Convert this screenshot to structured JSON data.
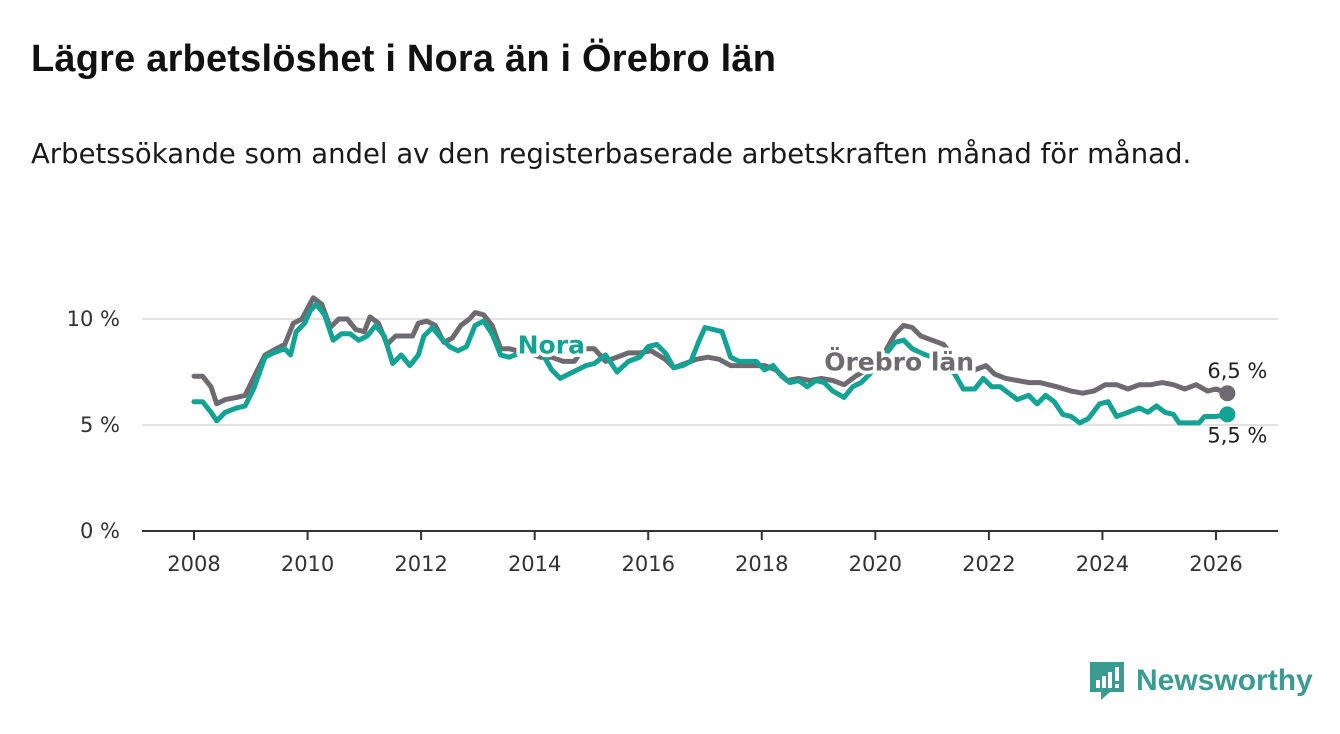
{
  "header": {
    "title": "Lägre arbetslöshet i Nora än i Örebro län",
    "subtitle": "Arbetssökande som andel av den registerbaserade arbetskraften månad för månad."
  },
  "brand": {
    "name": "Newsworthy",
    "icon": "bar-chart-exclamation-icon",
    "color": "#3a9b92"
  },
  "chart_data": {
    "type": "line",
    "title": "Lägre arbetslöshet i Nora än i Örebro län",
    "xlabel": "",
    "ylabel": "",
    "xlim": [
      2007.9,
      2027.1
    ],
    "ylim": [
      0,
      12
    ],
    "grid": true,
    "y_ticks": [
      {
        "value": 0,
        "label": "0 %"
      },
      {
        "value": 5,
        "label": "5 %"
      },
      {
        "value": 10,
        "label": "10 %"
      }
    ],
    "x_ticks": [
      {
        "value": 2008,
        "label": "2008"
      },
      {
        "value": 2010,
        "label": "2010"
      },
      {
        "value": 2012,
        "label": "2012"
      },
      {
        "value": 2014,
        "label": "2014"
      },
      {
        "value": 2016,
        "label": "2016"
      },
      {
        "value": 2018,
        "label": "2018"
      },
      {
        "value": 2020,
        "label": "2020"
      },
      {
        "value": 2022,
        "label": "2022"
      },
      {
        "value": 2024,
        "label": "2024"
      },
      {
        "value": 2026,
        "label": "2026"
      }
    ],
    "series": [
      {
        "name": "Örebro län",
        "color": "#6e6b70",
        "label_at": [
          2019.1,
          8.0
        ],
        "end_label": "6,5 %",
        "end_label_position": "above",
        "points": [
          [
            2008.0,
            7.3
          ],
          [
            2008.15,
            7.3
          ],
          [
            2008.3,
            6.8
          ],
          [
            2008.4,
            6.0
          ],
          [
            2008.55,
            6.2
          ],
          [
            2008.75,
            6.3
          ],
          [
            2008.9,
            6.4
          ],
          [
            2009.1,
            7.5
          ],
          [
            2009.25,
            8.3
          ],
          [
            2009.45,
            8.6
          ],
          [
            2009.6,
            8.8
          ],
          [
            2009.75,
            9.8
          ],
          [
            2009.9,
            10.0
          ],
          [
            2010.0,
            10.5
          ],
          [
            2010.1,
            11.0
          ],
          [
            2010.25,
            10.7
          ],
          [
            2010.4,
            9.6
          ],
          [
            2010.55,
            10.0
          ],
          [
            2010.7,
            10.0
          ],
          [
            2010.85,
            9.5
          ],
          [
            2011.0,
            9.4
          ],
          [
            2011.1,
            10.1
          ],
          [
            2011.25,
            9.8
          ],
          [
            2011.4,
            8.8
          ],
          [
            2011.55,
            9.2
          ],
          [
            2011.7,
            9.2
          ],
          [
            2011.85,
            9.2
          ],
          [
            2011.95,
            9.8
          ],
          [
            2012.1,
            9.9
          ],
          [
            2012.25,
            9.7
          ],
          [
            2012.4,
            8.9
          ],
          [
            2012.55,
            9.1
          ],
          [
            2012.7,
            9.7
          ],
          [
            2012.85,
            10.0
          ],
          [
            2012.95,
            10.3
          ],
          [
            2013.1,
            10.2
          ],
          [
            2013.25,
            9.7
          ],
          [
            2013.4,
            8.6
          ],
          [
            2013.55,
            8.6
          ],
          [
            2013.7,
            8.5
          ],
          [
            2013.9,
            8.4
          ],
          [
            2014.1,
            8.2
          ],
          [
            2014.3,
            8.2
          ],
          [
            2014.5,
            8.0
          ],
          [
            2014.7,
            8.0
          ],
          [
            2014.85,
            8.6
          ],
          [
            2015.05,
            8.6
          ],
          [
            2015.25,
            8.0
          ],
          [
            2015.45,
            8.2
          ],
          [
            2015.65,
            8.4
          ],
          [
            2015.85,
            8.4
          ],
          [
            2016.05,
            8.5
          ],
          [
            2016.3,
            8.1
          ],
          [
            2016.45,
            7.7
          ],
          [
            2016.65,
            7.9
          ],
          [
            2016.85,
            8.1
          ],
          [
            2017.05,
            8.2
          ],
          [
            2017.25,
            8.1
          ],
          [
            2017.45,
            7.8
          ],
          [
            2017.65,
            7.8
          ],
          [
            2017.85,
            7.8
          ],
          [
            2018.05,
            7.8
          ],
          [
            2018.25,
            7.6
          ],
          [
            2018.45,
            7.1
          ],
          [
            2018.65,
            7.2
          ],
          [
            2018.85,
            7.1
          ],
          [
            2019.05,
            7.2
          ],
          [
            2019.25,
            7.1
          ],
          [
            2019.45,
            6.9
          ],
          [
            2019.65,
            7.3
          ],
          [
            2019.85,
            7.6
          ],
          [
            2020.05,
            7.9
          ],
          [
            2020.2,
            8.6
          ],
          [
            2020.35,
            9.3
          ],
          [
            2020.5,
            9.7
          ],
          [
            2020.65,
            9.6
          ],
          [
            2020.8,
            9.2
          ],
          [
            2021.0,
            9.0
          ],
          [
            2021.2,
            8.8
          ],
          [
            2021.4,
            8.1
          ],
          [
            2021.55,
            7.8
          ],
          [
            2021.75,
            7.6
          ],
          [
            2021.95,
            7.8
          ],
          [
            2022.1,
            7.4
          ],
          [
            2022.3,
            7.2
          ],
          [
            2022.5,
            7.1
          ],
          [
            2022.7,
            7.0
          ],
          [
            2022.9,
            7.0
          ],
          [
            2023.05,
            6.9
          ],
          [
            2023.2,
            6.8
          ],
          [
            2023.45,
            6.6
          ],
          [
            2023.65,
            6.5
          ],
          [
            2023.85,
            6.6
          ],
          [
            2024.05,
            6.9
          ],
          [
            2024.25,
            6.9
          ],
          [
            2024.45,
            6.7
          ],
          [
            2024.65,
            6.9
          ],
          [
            2024.85,
            6.9
          ],
          [
            2025.05,
            7.0
          ],
          [
            2025.25,
            6.9
          ],
          [
            2025.45,
            6.7
          ],
          [
            2025.65,
            6.9
          ],
          [
            2025.85,
            6.6
          ],
          [
            2026.0,
            6.7
          ],
          [
            2026.2,
            6.5
          ]
        ]
      },
      {
        "name": "Nora",
        "color": "#12a395",
        "label_at": [
          2013.7,
          8.8
        ],
        "end_label": "5,5 %",
        "end_label_position": "below",
        "points": [
          [
            2008.0,
            6.1
          ],
          [
            2008.15,
            6.1
          ],
          [
            2008.3,
            5.6
          ],
          [
            2008.4,
            5.2
          ],
          [
            2008.55,
            5.6
          ],
          [
            2008.75,
            5.8
          ],
          [
            2008.9,
            5.9
          ],
          [
            2009.05,
            6.7
          ],
          [
            2009.25,
            8.2
          ],
          [
            2009.4,
            8.4
          ],
          [
            2009.6,
            8.6
          ],
          [
            2009.7,
            8.3
          ],
          [
            2009.8,
            9.4
          ],
          [
            2009.95,
            9.8
          ],
          [
            2010.05,
            10.4
          ],
          [
            2010.15,
            10.7
          ],
          [
            2010.3,
            10.2
          ],
          [
            2010.45,
            9.0
          ],
          [
            2010.6,
            9.3
          ],
          [
            2010.75,
            9.3
          ],
          [
            2010.9,
            9.0
          ],
          [
            2011.05,
            9.2
          ],
          [
            2011.2,
            9.7
          ],
          [
            2011.35,
            9.2
          ],
          [
            2011.5,
            7.9
          ],
          [
            2011.65,
            8.3
          ],
          [
            2011.8,
            7.8
          ],
          [
            2011.95,
            8.3
          ],
          [
            2012.05,
            9.2
          ],
          [
            2012.2,
            9.6
          ],
          [
            2012.35,
            9.1
          ],
          [
            2012.5,
            8.7
          ],
          [
            2012.65,
            8.5
          ],
          [
            2012.8,
            8.7
          ],
          [
            2012.95,
            9.7
          ],
          [
            2013.1,
            9.9
          ],
          [
            2013.25,
            9.3
          ],
          [
            2013.4,
            8.3
          ],
          [
            2013.55,
            8.2
          ],
          [
            2013.75,
            8.4
          ],
          [
            2013.95,
            8.9
          ],
          [
            2014.15,
            8.3
          ],
          [
            2014.3,
            7.6
          ],
          [
            2014.45,
            7.2
          ],
          [
            2014.6,
            7.4
          ],
          [
            2014.75,
            7.6
          ],
          [
            2014.9,
            7.8
          ],
          [
            2015.05,
            7.9
          ],
          [
            2015.25,
            8.3
          ],
          [
            2015.45,
            7.5
          ],
          [
            2015.65,
            8.0
          ],
          [
            2015.85,
            8.2
          ],
          [
            2016.0,
            8.7
          ],
          [
            2016.15,
            8.8
          ],
          [
            2016.3,
            8.4
          ],
          [
            2016.45,
            7.7
          ],
          [
            2016.6,
            7.8
          ],
          [
            2016.75,
            8.0
          ],
          [
            2016.9,
            9.0
          ],
          [
            2017.0,
            9.6
          ],
          [
            2017.15,
            9.5
          ],
          [
            2017.3,
            9.4
          ],
          [
            2017.45,
            8.2
          ],
          [
            2017.6,
            8.0
          ],
          [
            2017.75,
            8.0
          ],
          [
            2017.9,
            8.0
          ],
          [
            2018.05,
            7.6
          ],
          [
            2018.2,
            7.8
          ],
          [
            2018.35,
            7.3
          ],
          [
            2018.5,
            7.0
          ],
          [
            2018.65,
            7.1
          ],
          [
            2018.8,
            6.8
          ],
          [
            2018.95,
            7.1
          ],
          [
            2019.1,
            7.0
          ],
          [
            2019.25,
            6.6
          ],
          [
            2019.45,
            6.3
          ],
          [
            2019.6,
            6.8
          ],
          [
            2019.75,
            7.0
          ],
          [
            2019.9,
            7.4
          ],
          [
            2020.05,
            7.9
          ],
          [
            2020.2,
            8.4
          ],
          [
            2020.35,
            8.9
          ],
          [
            2020.5,
            9.0
          ],
          [
            2020.65,
            8.6
          ],
          [
            2020.8,
            8.4
          ],
          [
            2021.0,
            8.2
          ],
          [
            2021.2,
            8.0
          ],
          [
            2021.4,
            7.4
          ],
          [
            2021.55,
            6.7
          ],
          [
            2021.75,
            6.7
          ],
          [
            2021.9,
            7.2
          ],
          [
            2022.05,
            6.8
          ],
          [
            2022.2,
            6.8
          ],
          [
            2022.35,
            6.5
          ],
          [
            2022.5,
            6.2
          ],
          [
            2022.7,
            6.4
          ],
          [
            2022.85,
            6.0
          ],
          [
            2023.0,
            6.4
          ],
          [
            2023.15,
            6.1
          ],
          [
            2023.3,
            5.5
          ],
          [
            2023.45,
            5.4
          ],
          [
            2023.6,
            5.1
          ],
          [
            2023.75,
            5.3
          ],
          [
            2023.95,
            6.0
          ],
          [
            2024.1,
            6.1
          ],
          [
            2024.25,
            5.4
          ],
          [
            2024.45,
            5.6
          ],
          [
            2024.65,
            5.8
          ],
          [
            2024.8,
            5.6
          ],
          [
            2024.95,
            5.9
          ],
          [
            2025.1,
            5.6
          ],
          [
            2025.25,
            5.5
          ],
          [
            2025.35,
            5.1
          ],
          [
            2025.5,
            5.1
          ],
          [
            2025.7,
            5.1
          ],
          [
            2025.8,
            5.4
          ],
          [
            2026.0,
            5.4
          ],
          [
            2026.2,
            5.5
          ]
        ]
      }
    ]
  }
}
